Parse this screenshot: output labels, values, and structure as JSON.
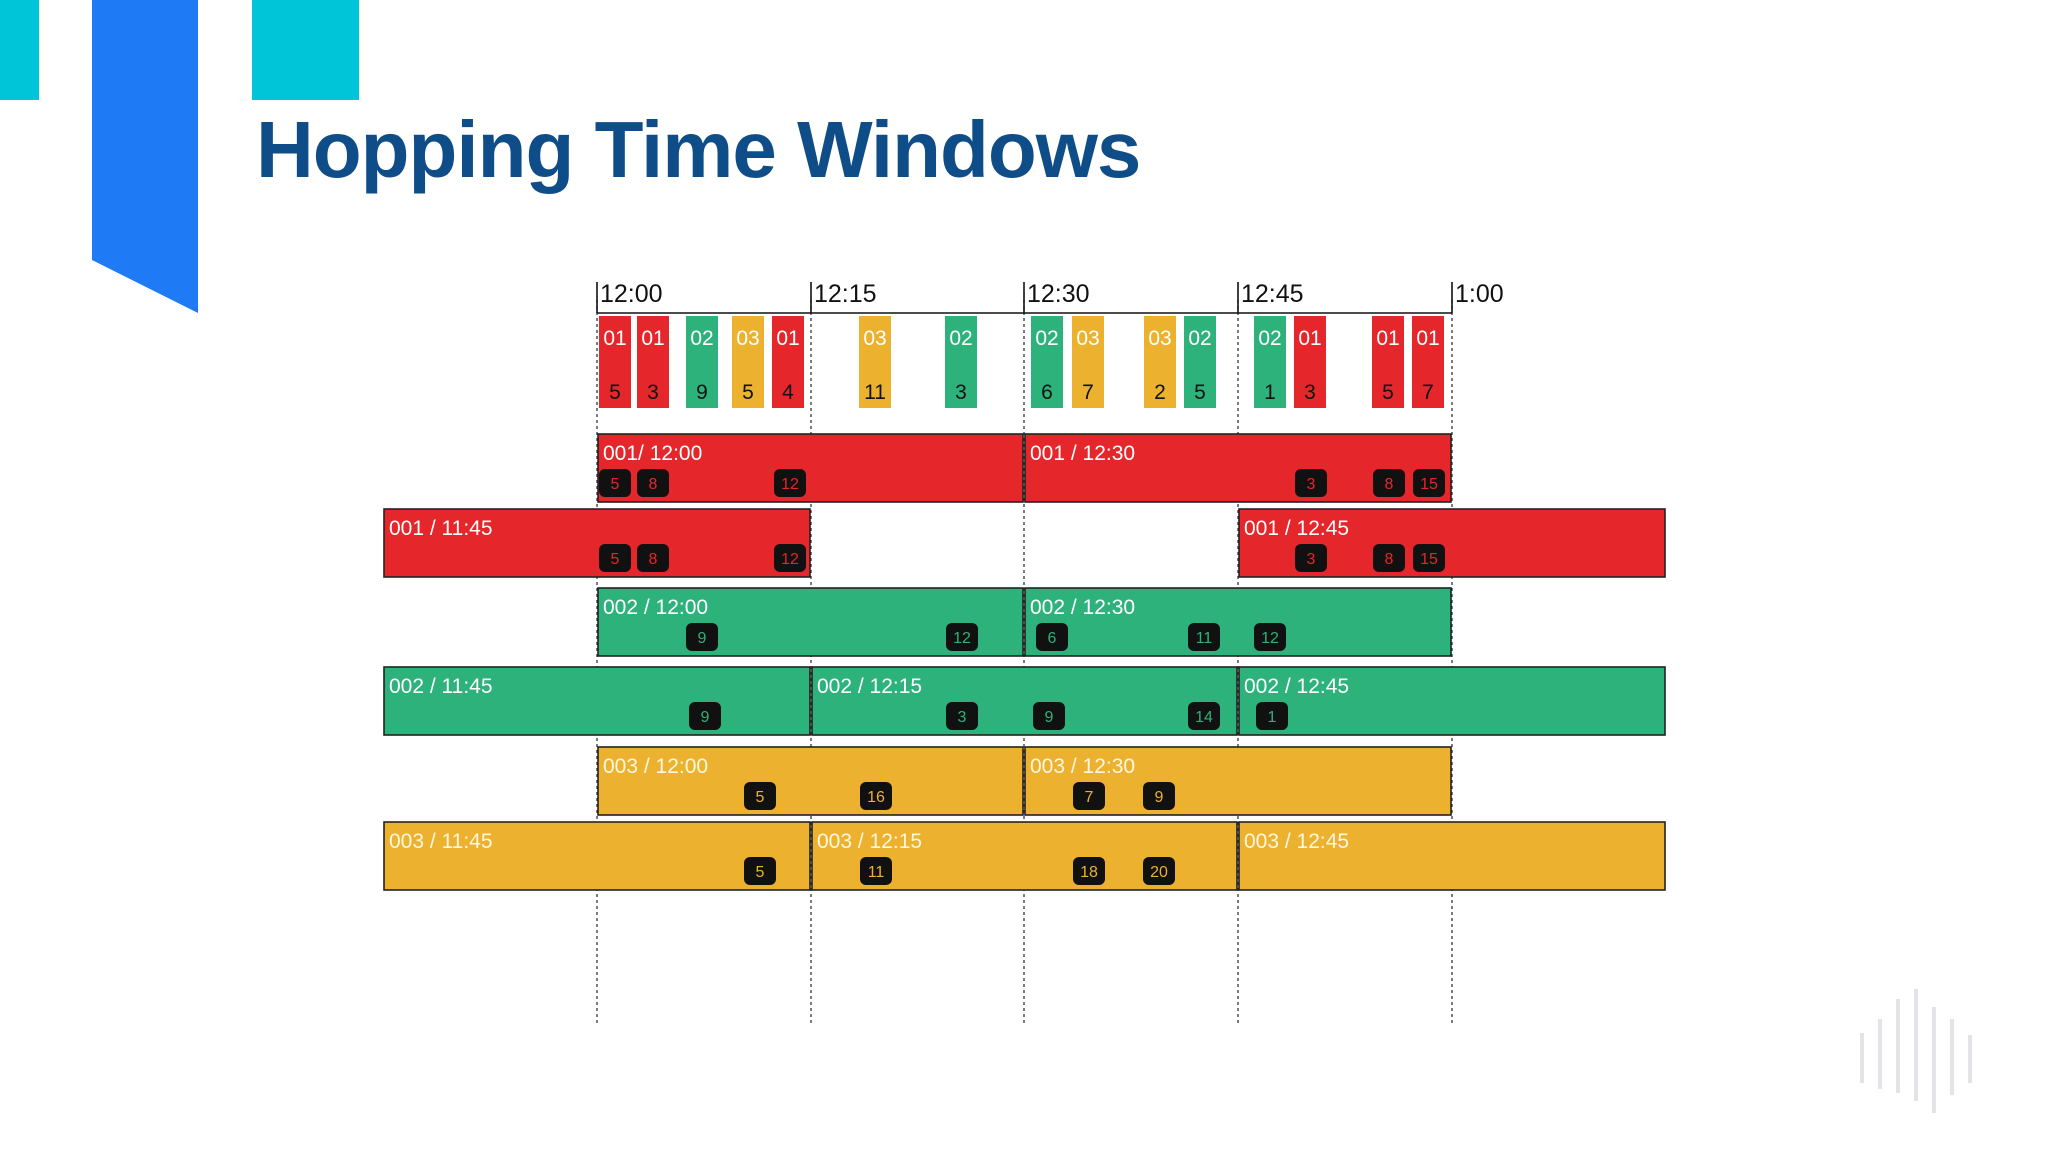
{
  "slide": {
    "title": "Hopping Time Windows",
    "colors": {
      "title": "#0e4d87",
      "accent_cyan": "#00c4d8",
      "accent_blue": "#1f7af5",
      "key_001": "#e5262b",
      "key_002": "#2db27c",
      "key_003": "#ecb22f",
      "badge": "#111111"
    }
  },
  "timeline": {
    "ticks": [
      "12:00",
      "12:15",
      "12:30",
      "12:45",
      "1:00"
    ],
    "events": [
      {
        "key": "01",
        "value": "5"
      },
      {
        "key": "01",
        "value": "3"
      },
      {
        "key": "02",
        "value": "9"
      },
      {
        "key": "03",
        "value": "5"
      },
      {
        "key": "01",
        "value": "4"
      },
      {
        "key": "03",
        "value": "11"
      },
      {
        "key": "02",
        "value": "3"
      },
      {
        "key": "02",
        "value": "6"
      },
      {
        "key": "03",
        "value": "7"
      },
      {
        "key": "03",
        "value": "2"
      },
      {
        "key": "02",
        "value": "5"
      },
      {
        "key": "02",
        "value": "1"
      },
      {
        "key": "01",
        "value": "3"
      },
      {
        "key": "01",
        "value": "5"
      },
      {
        "key": "01",
        "value": "7"
      }
    ]
  },
  "windows": [
    {
      "key": "001",
      "label": "001/ 12:00",
      "badges": [
        "5",
        "8",
        "12"
      ]
    },
    {
      "key": "001",
      "label": "001 / 12:30",
      "badges": [
        "3",
        "8",
        "15"
      ]
    },
    {
      "key": "001",
      "label": "001 / 11:45",
      "badges": [
        "5",
        "8",
        "12"
      ]
    },
    {
      "key": "001",
      "label": "001 / 12:45",
      "badges": [
        "3",
        "8",
        "15"
      ]
    },
    {
      "key": "002",
      "label": "002 / 12:00",
      "badges": [
        "9",
        "12"
      ]
    },
    {
      "key": "002",
      "label": "002 / 12:30",
      "badges": [
        "6",
        "11",
        "12"
      ]
    },
    {
      "key": "002",
      "label": "002 / 11:45",
      "badges": [
        "9"
      ]
    },
    {
      "key": "002",
      "label": "002 / 12:15",
      "badges": [
        "3",
        "9",
        "14"
      ]
    },
    {
      "key": "002",
      "label": "002 / 12:45",
      "badges": [
        "1"
      ]
    },
    {
      "key": "003",
      "label": "003 / 12:00",
      "badges": [
        "5",
        "16"
      ]
    },
    {
      "key": "003",
      "label": "003 / 12:30",
      "badges": [
        "7",
        "9"
      ]
    },
    {
      "key": "003",
      "label": "003 / 11:45",
      "badges": [
        "5"
      ]
    },
    {
      "key": "003",
      "label": "003 / 12:15",
      "badges": [
        "11",
        "18",
        "20"
      ]
    },
    {
      "key": "003",
      "label": "003 / 12:45",
      "badges": []
    }
  ]
}
